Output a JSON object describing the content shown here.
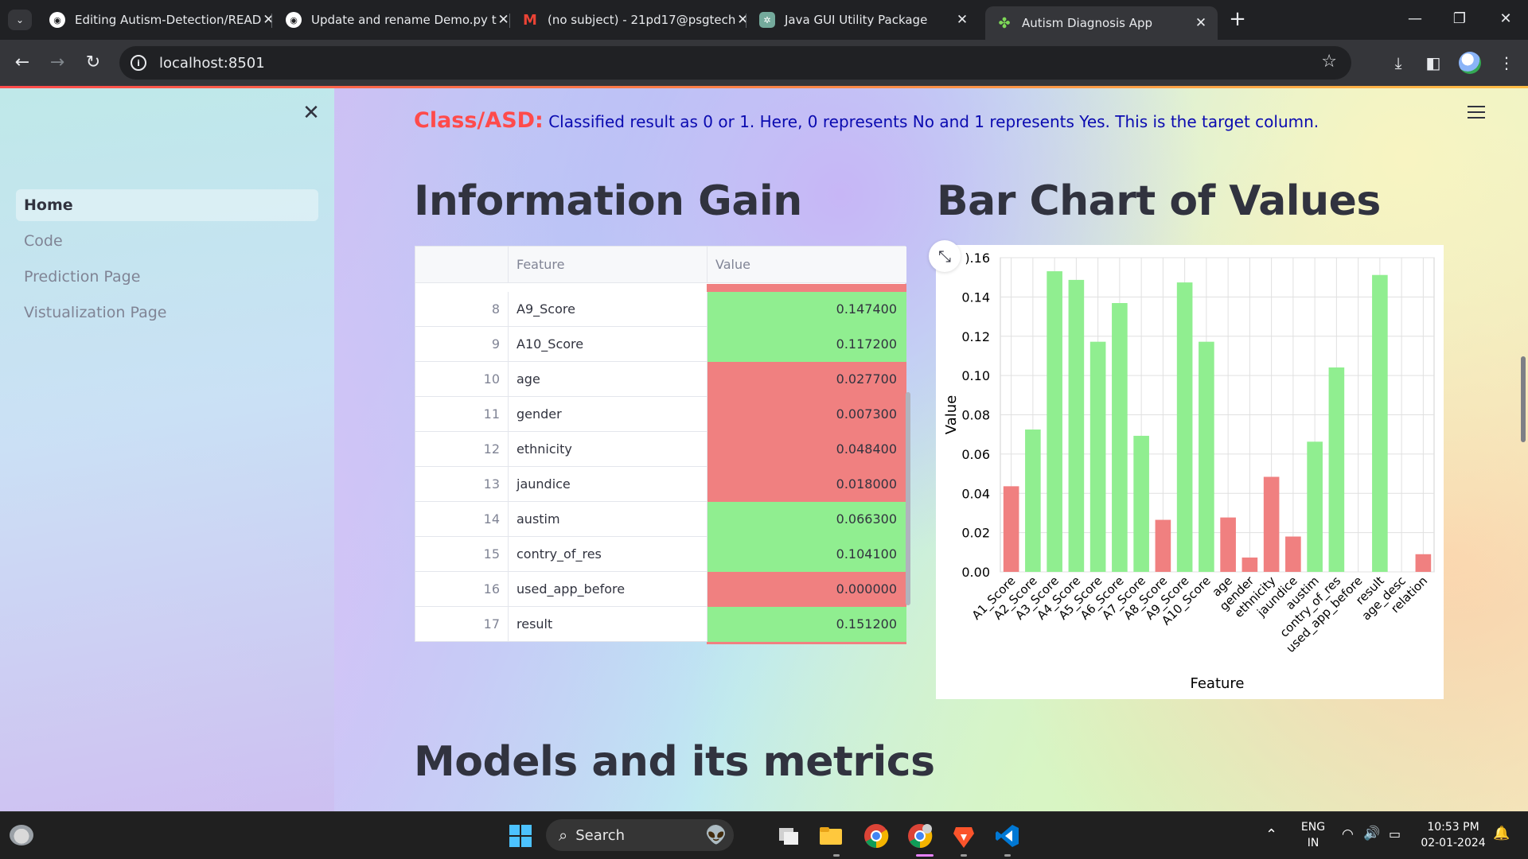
{
  "browser": {
    "tabs": [
      {
        "title": "Editing Autism-Detection/READ",
        "icon": "github-icon"
      },
      {
        "title": "Update and rename Demo.py t",
        "icon": "github-icon"
      },
      {
        "title": "(no subject) - 21pd17@psgtech",
        "icon": "gmail-icon"
      },
      {
        "title": "Java GUI Utility Package",
        "icon": "openai-icon"
      },
      {
        "title": "Autism Diagnosis App",
        "icon": "streamlit-icon"
      }
    ],
    "active_tab": 4,
    "url": "localhost:8501"
  },
  "sidebar": {
    "items": [
      {
        "label": "Home"
      },
      {
        "label": "Code"
      },
      {
        "label": "Prediction Page"
      },
      {
        "label": "Vistualization Page"
      }
    ]
  },
  "main": {
    "class_label": "Class/ASD:",
    "class_description": "Classified result as 0 or 1. Here, 0 represents No and 1 represents Yes. This is the target column.",
    "info_gain_heading": "Information Gain",
    "bar_chart_heading": "Bar Chart of Values",
    "models_heading": "Models and its metrics"
  },
  "table": {
    "columns": [
      "Feature",
      "Value"
    ],
    "rows": [
      {
        "index": "8",
        "feature": "A9_Score",
        "value": "0.147400",
        "status": "high"
      },
      {
        "index": "9",
        "feature": "A10_Score",
        "value": "0.117200",
        "status": "high"
      },
      {
        "index": "10",
        "feature": "age",
        "value": "0.027700",
        "status": "low"
      },
      {
        "index": "11",
        "feature": "gender",
        "value": "0.007300",
        "status": "low"
      },
      {
        "index": "12",
        "feature": "ethnicity",
        "value": "0.048400",
        "status": "low"
      },
      {
        "index": "13",
        "feature": "jaundice",
        "value": "0.018000",
        "status": "low"
      },
      {
        "index": "14",
        "feature": "austim",
        "value": "0.066300",
        "status": "high"
      },
      {
        "index": "15",
        "feature": "contry_of_res",
        "value": "0.104100",
        "status": "high"
      },
      {
        "index": "16",
        "feature": "used_app_before",
        "value": "0.000000",
        "status": "low"
      },
      {
        "index": "17",
        "feature": "result",
        "value": "0.151200",
        "status": "high"
      }
    ]
  },
  "colors": {
    "high": "#90ee90",
    "low": "#f08080",
    "accent": "#ff4b4b",
    "description": "#0a0ab0"
  },
  "chart_data": {
    "type": "bar",
    "title": "",
    "xlabel": "Feature",
    "ylabel": "Value",
    "ylim": [
      0,
      0.16
    ],
    "yticks": [
      "0.00",
      "0.02",
      "0.04",
      "0.06",
      "0.08",
      "0.10",
      "0.12",
      "0.14",
      ").16"
    ],
    "ytick_values": [
      0,
      0.02,
      0.04,
      0.06,
      0.08,
      0.1,
      0.12,
      0.14,
      0.16
    ],
    "categories": [
      "A1_Score",
      "A2_Score",
      "A3_Score",
      "A4_Score",
      "A5_Score",
      "A6_Score",
      "A7_Score",
      "A8_Score",
      "A9_Score",
      "A10_Score",
      "age",
      "gender",
      "ethnicity",
      "jaundice",
      "austim",
      "contry_of_res",
      "used_app_before",
      "result",
      "age_desc",
      "relation"
    ],
    "values": [
      0.0436,
      0.0725,
      0.1531,
      0.1487,
      0.1172,
      0.1369,
      0.0693,
      0.0265,
      0.1474,
      0.1172,
      0.0277,
      0.0073,
      0.0484,
      0.018,
      0.0663,
      0.1041,
      0.0,
      0.1512,
      0.0,
      0.009
    ],
    "bar_colors": [
      "red",
      "green",
      "green",
      "green",
      "green",
      "green",
      "green",
      "red",
      "green",
      "green",
      "red",
      "red",
      "red",
      "red",
      "green",
      "green",
      "red",
      "green",
      "red",
      "red"
    ],
    "grid": true
  },
  "taskbar": {
    "search_label": "Search",
    "lang_top": "ENG",
    "lang_bottom": "IN",
    "time": "10:53 PM",
    "date": "02-01-2024"
  }
}
